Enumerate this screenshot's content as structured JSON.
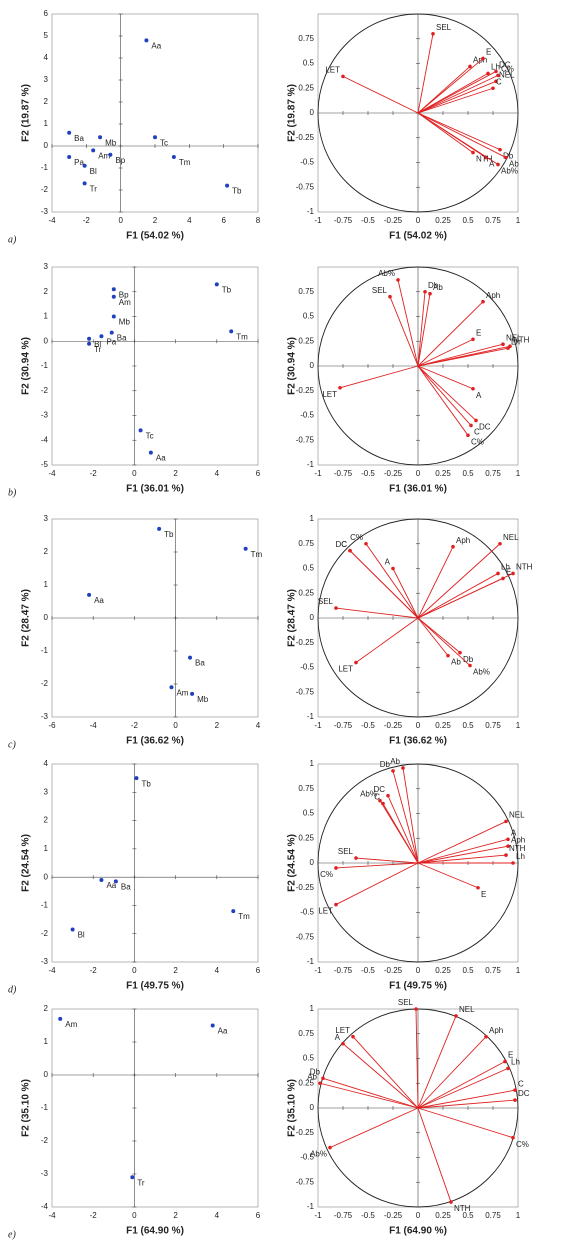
{
  "chart_data": [
    {
      "type": "scatter",
      "panel": "a)",
      "xlabel": "F1 (54.02 %)",
      "ylabel": "F2 (19.87 %)",
      "color": "#2040c0",
      "xlim": [
        -4,
        8
      ],
      "xticks": [
        -4,
        -2,
        0,
        2,
        4,
        6,
        8
      ],
      "ylim": [
        -3,
        6
      ],
      "yticks": [
        -3,
        -2,
        -1,
        0,
        1,
        2,
        3,
        4,
        5,
        6
      ],
      "labels": [
        "Aa",
        "Ba",
        "Mb",
        "Tc",
        "Am",
        "Bp",
        "Pa",
        "Bl",
        "Tr",
        "Tm",
        "Tb"
      ],
      "x": [
        1.5,
        -3,
        -1.2,
        2,
        -1.6,
        -0.6,
        -3,
        -2.1,
        -2.1,
        3.1,
        6.2
      ],
      "y": [
        4.8,
        0.6,
        0.4,
        0.4,
        -0.2,
        -0.4,
        -0.5,
        -0.9,
        -1.7,
        -0.5,
        -1.8
      ]
    },
    {
      "type": "circle",
      "xlabel": "F1 (54.02 %)",
      "ylabel": "F2 (19.87 %)",
      "color": "#e02020",
      "xlim": [
        -1,
        1
      ],
      "xticks": [
        -1,
        -0.75,
        -0.5,
        -0.25,
        0,
        0.25,
        0.5,
        0.75,
        1
      ],
      "ylim": [
        -1,
        1
      ],
      "yticks": [
        -1,
        -0.75,
        -0.5,
        -0.25,
        0,
        0.25,
        0.5,
        0.75
      ],
      "labels": [
        "SEL",
        "LET",
        "Aph",
        "E",
        "DC",
        "Lh",
        "C%",
        "NEL",
        "C",
        "Db",
        "Ab",
        "A",
        "NTH",
        "Ab%"
      ],
      "x": [
        0.15,
        -0.75,
        0.52,
        0.65,
        0.78,
        0.7,
        0.8,
        0.78,
        0.75,
        0.82,
        0.88,
        0.68,
        0.55,
        0.8
      ],
      "y": [
        0.8,
        0.37,
        0.47,
        0.55,
        0.42,
        0.4,
        0.38,
        0.32,
        0.25,
        -0.37,
        -0.45,
        -0.45,
        -0.4,
        -0.52
      ]
    },
    {
      "type": "scatter",
      "panel": "b)",
      "xlabel": "F1 (36.01 %)",
      "ylabel": "F2 (30.94 %)",
      "color": "#2040c0",
      "xlim": [
        -4,
        6
      ],
      "xticks": [
        -4,
        -2,
        0,
        2,
        4,
        6
      ],
      "ylim": [
        -5,
        3
      ],
      "yticks": [
        -5,
        -4,
        -3,
        -2,
        -1,
        0,
        1,
        2,
        3
      ],
      "labels": [
        "Tb",
        "Tm",
        "Bp",
        "Am",
        "Mb",
        "Bl",
        "Tr",
        "Pa",
        "Ba",
        "Tc",
        "Aa"
      ],
      "x": [
        4,
        4.7,
        -1,
        -1,
        -1,
        -2.2,
        -2.2,
        -1.6,
        -1.1,
        0.3,
        0.8
      ],
      "y": [
        2.3,
        0.4,
        2.1,
        1.8,
        1,
        0.1,
        -0.1,
        0.2,
        0.35,
        -3.6,
        -4.5
      ]
    },
    {
      "type": "circle",
      "xlabel": "F1 (36.01 %)",
      "ylabel": "F2 (30.94 %)",
      "color": "#e02020",
      "xlim": [
        -1,
        1
      ],
      "xticks": [
        -1,
        -0.75,
        -0.5,
        -0.25,
        0,
        0.25,
        0.5,
        0.75,
        1
      ],
      "ylim": [
        -1,
        1
      ],
      "yticks": [
        -1,
        -0.75,
        -0.5,
        -0.25,
        0,
        0.25,
        0.5,
        0.75
      ],
      "labels": [
        "Ab%",
        "Db",
        "Ab",
        "SEL",
        "Aph",
        "E",
        "NEL",
        "NTH",
        "Lh",
        "LET",
        "A",
        "DC",
        "C",
        "C%"
      ],
      "x": [
        -0.2,
        0.07,
        0.12,
        -0.28,
        0.65,
        0.55,
        0.85,
        0.92,
        0.9,
        -0.78,
        0.55,
        0.58,
        0.53,
        0.5
      ],
      "y": [
        0.87,
        0.75,
        0.73,
        0.7,
        0.65,
        0.27,
        0.22,
        0.2,
        0.18,
        -0.22,
        -0.23,
        -0.55,
        -0.6,
        -0.7
      ]
    },
    {
      "type": "scatter",
      "panel": "c)",
      "xlabel": "F1 (36.62 %)",
      "ylabel": "F2 (28.47 %)",
      "color": "#2040c0",
      "xlim": [
        -6,
        4
      ],
      "xticks": [
        -6,
        -4,
        -2,
        0,
        2,
        4
      ],
      "ylim": [
        -3,
        3
      ],
      "yticks": [
        -3,
        -2,
        -1,
        0,
        1,
        2,
        3
      ],
      "labels": [
        "Tb",
        "Tm",
        "Aa",
        "Ba",
        "Am",
        "Mb"
      ],
      "x": [
        -0.8,
        3.4,
        -4.2,
        0.7,
        -0.2,
        0.8
      ],
      "y": [
        2.7,
        2.1,
        0.7,
        -1.2,
        -2.1,
        -2.3
      ]
    },
    {
      "type": "circle",
      "xlabel": "F1 (36.62 %)",
      "ylabel": "F2 (28.47 %)",
      "color": "#e02020",
      "xlim": [
        -1,
        1
      ],
      "xticks": [
        -1,
        -0.75,
        -0.5,
        -0.25,
        0,
        0.25,
        0.5,
        0.75,
        1
      ],
      "ylim": [
        -1,
        1
      ],
      "yticks": [
        -1,
        -0.75,
        -0.5,
        -0.25,
        0,
        0.25,
        0.5,
        0.75,
        1
      ],
      "labels": [
        "DC",
        "C",
        "C%",
        "A",
        "Aph",
        "NEL",
        "NTH",
        "Lh",
        "E",
        "SEL",
        "LET",
        "Ab",
        "Db",
        "Ab%"
      ],
      "x": [
        -0.68,
        -0.68,
        -0.52,
        -0.25,
        0.35,
        0.82,
        0.95,
        0.8,
        0.85,
        -0.82,
        -0.62,
        0.3,
        0.42,
        0.52
      ],
      "y": [
        0.68,
        0.68,
        0.75,
        0.5,
        0.72,
        0.75,
        0.45,
        0.45,
        0.4,
        0.1,
        -0.45,
        -0.38,
        -0.35,
        -0.48
      ]
    },
    {
      "type": "scatter",
      "panel": "d)",
      "xlabel": "F1 (49.75 %)",
      "ylabel": "F2 (24.54 %)",
      "color": "#2040c0",
      "xlim": [
        -4,
        6
      ],
      "xticks": [
        -4,
        -2,
        0,
        2,
        4,
        6
      ],
      "ylim": [
        -3,
        4
      ],
      "yticks": [
        -3,
        -2,
        -1,
        0,
        1,
        2,
        3,
        4
      ],
      "labels": [
        "Tb",
        "Aa",
        "Ba",
        "Bl",
        "Tm"
      ],
      "x": [
        0.1,
        -1.6,
        -0.9,
        -3,
        4.8
      ],
      "y": [
        3.5,
        -0.1,
        -0.15,
        -1.85,
        -1.2
      ]
    },
    {
      "type": "circle",
      "xlabel": "F1 (49.75 %)",
      "ylabel": "F2 (24.54 %)",
      "color": "#e02020",
      "xlim": [
        -1,
        1
      ],
      "xticks": [
        -1,
        -0.75,
        -0.5,
        -0.25,
        0,
        0.25,
        0.5,
        0.75,
        1
      ],
      "ylim": [
        -1,
        1
      ],
      "yticks": [
        -1,
        -0.75,
        -0.5,
        -0.25,
        0,
        0.25,
        0.5,
        0.75,
        1
      ],
      "labels": [
        "Ab",
        "Db",
        "Ab%",
        "DC",
        "C",
        "C%",
        "SEL",
        "LET",
        "NEL",
        "A",
        "Aph",
        "NTH",
        "Lh",
        "E"
      ],
      "x": [
        -0.15,
        -0.25,
        -0.38,
        -0.3,
        -0.35,
        -0.82,
        -0.62,
        -0.82,
        0.88,
        0.9,
        0.9,
        0.88,
        0.95,
        0.6
      ],
      "y": [
        0.96,
        0.93,
        0.63,
        0.68,
        0.6,
        -0.05,
        0.05,
        -0.42,
        0.42,
        0.24,
        0.17,
        0.08,
        0,
        -0.25
      ]
    },
    {
      "type": "scatter",
      "panel": "e)",
      "xlabel": "F1 (64.90 %)",
      "ylabel": "F2 (35.10 %)",
      "color": "#2040c0",
      "xlim": [
        -4,
        6
      ],
      "xticks": [
        -4,
        -2,
        0,
        2,
        4,
        6
      ],
      "ylim": [
        -4,
        2
      ],
      "yticks": [
        -4,
        -3,
        -2,
        -1,
        0,
        1,
        2
      ],
      "labels": [
        "Am",
        "Aa",
        "Tr"
      ],
      "x": [
        -3.6,
        3.8,
        -0.1
      ],
      "y": [
        1.7,
        1.5,
        -3.1
      ]
    },
    {
      "type": "circle",
      "xlabel": "F1 (64.90 %)",
      "ylabel": "F2 (35.10 %)",
      "color": "#e02020",
      "xlim": [
        -1,
        1
      ],
      "xticks": [
        -1,
        -0.75,
        -0.5,
        -0.25,
        0,
        0.25,
        0.5,
        0.75,
        1
      ],
      "ylim": [
        -1,
        1
      ],
      "yticks": [
        -1,
        -0.75,
        -0.5,
        -0.25,
        0,
        0.25,
        0.5,
        0.75,
        1
      ],
      "labels": [
        "SEL",
        "NEL",
        "LET",
        "A",
        "Aph",
        "E",
        "Lh",
        "C",
        "DC",
        "C%",
        "Db",
        "Ab",
        "Ab%",
        "NTH"
      ],
      "x": [
        -0.02,
        0.38,
        -0.65,
        -0.75,
        0.68,
        0.87,
        0.9,
        0.97,
        0.97,
        0.95,
        -0.95,
        -0.98,
        -0.88,
        0.33
      ],
      "y": [
        1,
        0.93,
        0.72,
        0.65,
        0.72,
        0.47,
        0.4,
        0.18,
        0.08,
        -0.3,
        0.3,
        0.25,
        -0.4,
        -0.95
      ]
    }
  ]
}
